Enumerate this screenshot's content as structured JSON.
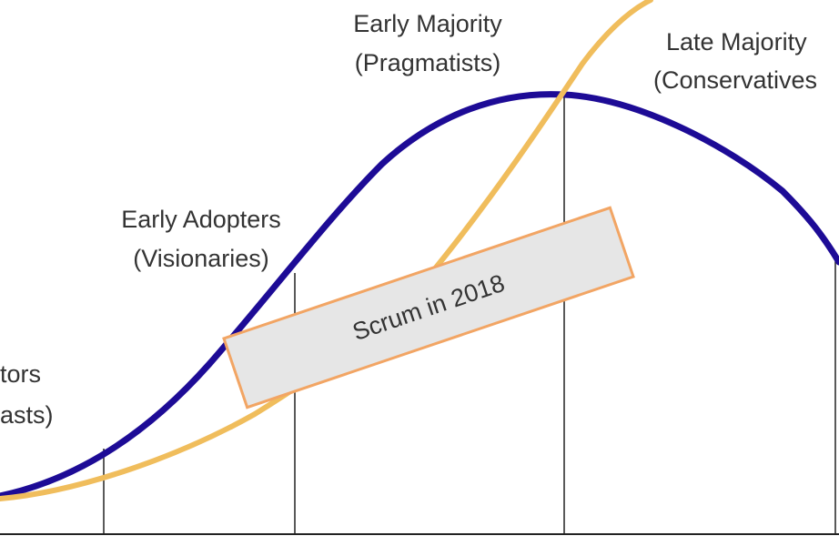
{
  "segments": [
    {
      "id": "innovators",
      "line1": "tors",
      "line2": "asts)"
    },
    {
      "id": "early-adopters",
      "line1": "Early Adopters",
      "line2": "(Visionaries)"
    },
    {
      "id": "early-majority",
      "line1": "Early Majority",
      "line2": "(Pragmatists)"
    },
    {
      "id": "late-majority",
      "line1": "Late Majority",
      "line2": "(Conservatives"
    }
  ],
  "callout": {
    "text": "Scrum in 2018"
  },
  "colors": {
    "bell_curve": "#1d0b96",
    "adoption_curve": "#f0bd5c",
    "divider": "#222222",
    "callout_fill": "#e6e6e6",
    "callout_border": "#f2a564",
    "label_text": "#333333"
  }
}
